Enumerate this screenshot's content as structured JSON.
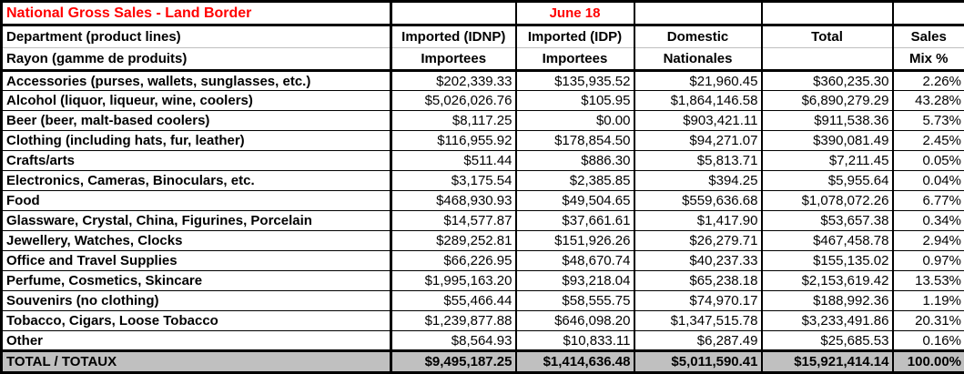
{
  "title": "National Gross Sales - Land Border",
  "date_label": "June 18",
  "colors": {
    "accent_red": "#ff0000",
    "total_row_bg": "#c0c0c0",
    "grid": "#000000"
  },
  "header": {
    "dept_line1": "Department (product lines)",
    "dept_line2": "Rayon (gamme de produits)",
    "columns": [
      {
        "line1": "Imported (IDNP)",
        "line2": "Importees"
      },
      {
        "line1": "Imported (IDP)",
        "line2": "Importees"
      },
      {
        "line1": "Domestic",
        "line2": "Nationales"
      },
      {
        "line1": "Total",
        "line2": ""
      },
      {
        "line1": "Sales",
        "line2": "Mix %"
      }
    ]
  },
  "rows": [
    {
      "label": "Accessories (purses, wallets, sunglasses, etc.)",
      "idnp": "$202,339.33",
      "idp": "$135,935.52",
      "domestic": "$21,960.45",
      "total": "$360,235.30",
      "mix": "2.26%"
    },
    {
      "label": "Alcohol (liquor, liqueur, wine, coolers)",
      "idnp": "$5,026,026.76",
      "idp": "$105.95",
      "domestic": "$1,864,146.58",
      "total": "$6,890,279.29",
      "mix": "43.28%"
    },
    {
      "label": "Beer (beer, malt-based coolers)",
      "idnp": "$8,117.25",
      "idp": "$0.00",
      "domestic": "$903,421.11",
      "total": "$911,538.36",
      "mix": "5.73%"
    },
    {
      "label": "Clothing (including hats, fur, leather)",
      "idnp": "$116,955.92",
      "idp": "$178,854.50",
      "domestic": "$94,271.07",
      "total": "$390,081.49",
      "mix": "2.45%"
    },
    {
      "label": "Crafts/arts",
      "idnp": "$511.44",
      "idp": "$886.30",
      "domestic": "$5,813.71",
      "total": "$7,211.45",
      "mix": "0.05%"
    },
    {
      "label": "Electronics, Cameras, Binoculars, etc.",
      "idnp": "$3,175.54",
      "idp": "$2,385.85",
      "domestic": "$394.25",
      "total": "$5,955.64",
      "mix": "0.04%"
    },
    {
      "label": "Food",
      "idnp": "$468,930.93",
      "idp": "$49,504.65",
      "domestic": "$559,636.68",
      "total": "$1,078,072.26",
      "mix": "6.77%"
    },
    {
      "label": "Glassware, Crystal, China, Figurines, Porcelain",
      "idnp": "$14,577.87",
      "idp": "$37,661.61",
      "domestic": "$1,417.90",
      "total": "$53,657.38",
      "mix": "0.34%"
    },
    {
      "label": "Jewellery, Watches, Clocks",
      "idnp": "$289,252.81",
      "idp": "$151,926.26",
      "domestic": "$26,279.71",
      "total": "$467,458.78",
      "mix": "2.94%"
    },
    {
      "label": "Office and Travel Supplies",
      "idnp": "$66,226.95",
      "idp": "$48,670.74",
      "domestic": "$40,237.33",
      "total": "$155,135.02",
      "mix": "0.97%"
    },
    {
      "label": "Perfume, Cosmetics, Skincare",
      "idnp": "$1,995,163.20",
      "idp": "$93,218.04",
      "domestic": "$65,238.18",
      "total": "$2,153,619.42",
      "mix": "13.53%"
    },
    {
      "label": "Souvenirs (no clothing)",
      "idnp": "$55,466.44",
      "idp": "$58,555.75",
      "domestic": "$74,970.17",
      "total": "$188,992.36",
      "mix": "1.19%"
    },
    {
      "label": "Tobacco, Cigars, Loose Tobacco",
      "idnp": "$1,239,877.88",
      "idp": "$646,098.20",
      "domestic": "$1,347,515.78",
      "total": "$3,233,491.86",
      "mix": "20.31%"
    },
    {
      "label": "Other",
      "idnp": "$8,564.93",
      "idp": "$10,833.11",
      "domestic": "$6,287.49",
      "total": "$25,685.53",
      "mix": "0.16%"
    }
  ],
  "total_row": {
    "label": "TOTAL / TOTAUX",
    "idnp": "$9,495,187.25",
    "idp": "$1,414,636.48",
    "domestic": "$5,011,590.41",
    "total": "$15,921,414.14",
    "mix": "100.00%"
  }
}
